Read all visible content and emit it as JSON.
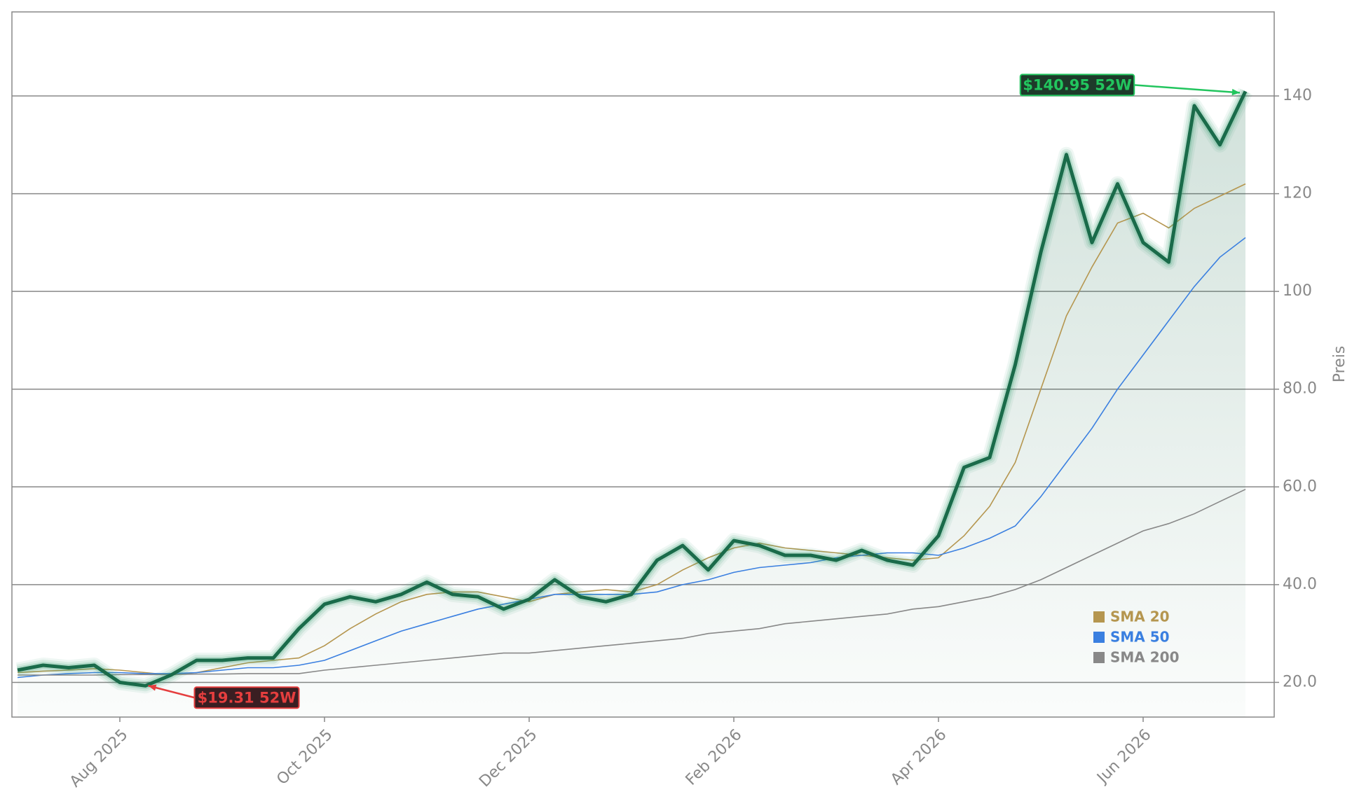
{
  "chart_data": {
    "type": "line",
    "y_label": "Preis",
    "x": [
      "2025-07",
      "2025-07",
      "2025-07",
      "2025-07",
      "2025-08",
      "2025-08",
      "2025-08",
      "2025-08",
      "2025-09",
      "2025-09",
      "2025-09",
      "2025-09",
      "2025-10",
      "2025-10",
      "2025-10",
      "2025-10",
      "2025-11",
      "2025-11",
      "2025-11",
      "2025-11",
      "2025-12",
      "2025-12",
      "2025-12",
      "2025-12",
      "2026-01",
      "2026-01",
      "2026-01",
      "2026-01",
      "2026-02",
      "2026-02",
      "2026-02",
      "2026-02",
      "2026-03",
      "2026-03",
      "2026-03",
      "2026-03",
      "2026-04",
      "2026-04",
      "2026-04",
      "2026-04",
      "2026-05",
      "2026-05",
      "2026-05",
      "2026-05",
      "2026-06",
      "2026-06",
      "2026-06",
      "2026-06",
      "2026-06"
    ],
    "price": {
      "color": "#1a6b4a",
      "values": [
        22.5,
        23.5,
        23,
        23.5,
        20,
        19.31,
        21.5,
        24.5,
        24.5,
        25,
        25,
        31,
        36,
        37.5,
        36.5,
        38,
        40.5,
        38,
        37.5,
        35,
        37,
        41,
        37.5,
        36.5,
        38,
        45,
        48,
        43,
        49,
        48,
        46,
        46,
        45,
        47,
        45,
        44,
        50,
        64,
        66,
        85,
        108,
        128,
        110,
        122,
        110,
        106,
        138,
        130,
        140.95
      ]
    },
    "series": [
      {
        "name": "SMA 20",
        "color": "#b5964f",
        "values": [
          22,
          22.3,
          22.5,
          22.8,
          22.5,
          22,
          21.5,
          22,
          23,
          24,
          24.5,
          25,
          27.5,
          31,
          34,
          36.5,
          38,
          38.5,
          38.5,
          37.5,
          36.5,
          38,
          38.5,
          39,
          38.5,
          40,
          43,
          45.5,
          47.5,
          48.5,
          47.5,
          47,
          46.5,
          46,
          45.5,
          45,
          45.5,
          50,
          56,
          65,
          80,
          95,
          105,
          114,
          116,
          113,
          117,
          119.5,
          122
        ]
      },
      {
        "name": "SMA 50",
        "color": "#3a7fe0",
        "values": [
          21,
          21.5,
          21.8,
          22,
          22,
          21.8,
          21.8,
          22,
          22.5,
          23,
          23,
          23.5,
          24.5,
          26.5,
          28.5,
          30.5,
          32,
          33.5,
          35,
          36,
          37,
          38,
          38,
          38,
          38,
          38.5,
          40,
          41,
          42.5,
          43.5,
          44,
          44.5,
          45.5,
          46,
          46.5,
          46.5,
          46,
          47.5,
          49.5,
          52,
          58,
          65,
          72,
          80,
          87,
          94,
          101,
          107,
          111
        ]
      },
      {
        "name": "SMA 200",
        "color": "#888888",
        "values": [
          21.5,
          21.5,
          21.5,
          21.5,
          21.6,
          21.6,
          21.6,
          21.7,
          21.7,
          21.8,
          21.8,
          21.8,
          22.5,
          23,
          23.5,
          24,
          24.5,
          25,
          25.5,
          26,
          26,
          26.5,
          27,
          27.5,
          28,
          28.5,
          29,
          30,
          30.5,
          31,
          32,
          32.5,
          33,
          33.5,
          34,
          35,
          35.5,
          36.5,
          37.5,
          39,
          41,
          43.5,
          46,
          48.5,
          51,
          52.5,
          54.5,
          57,
          59.5
        ]
      }
    ],
    "annotations": [
      {
        "text": "$140.95 52W",
        "color": "#22c55e",
        "background": "#1e3a2a",
        "at": "max"
      },
      {
        "text": "$19.31 52W",
        "color": "#e53e3e",
        "background": "#3a1e22",
        "at": "min"
      }
    ],
    "ylim": [
      12.9,
      157.2
    ],
    "yticks": [
      {
        "value": 20,
        "label": "20.0"
      },
      {
        "value": 40,
        "label": "40.0"
      },
      {
        "value": 60,
        "label": "60.0"
      },
      {
        "value": 80,
        "label": "80.0"
      },
      100,
      120,
      140
    ],
    "xticks": [
      {
        "value": "2025-08",
        "label": "Aug 2025"
      },
      {
        "value": "2025-10",
        "label": "Oct 2025"
      },
      {
        "value": "2025-12",
        "label": "Dec 2025"
      },
      {
        "value": "2026-02",
        "label": "Feb 2026"
      },
      {
        "value": "2026-04",
        "label": "Apr 2026"
      },
      {
        "value": "2026-06",
        "label": "Jun 2026"
      }
    ],
    "grid": true,
    "legend": "lower right"
  }
}
